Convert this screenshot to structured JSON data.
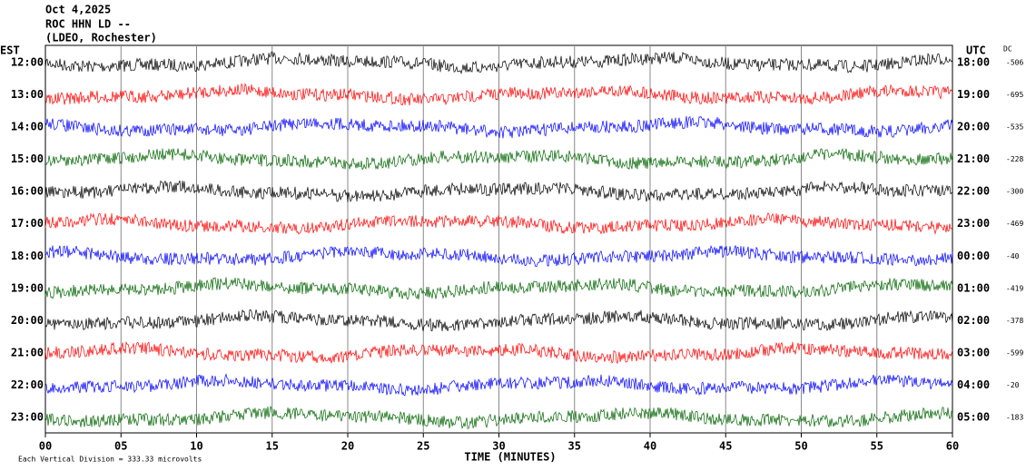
{
  "header": {
    "date": "Oct 4,2025",
    "station": "ROC HHN LD --",
    "network": "(LDEO, Rochester)"
  },
  "left_axis": {
    "label": "EST",
    "ticks": [
      "12:00",
      "13:00",
      "14:00",
      "15:00",
      "16:00",
      "17:00",
      "18:00",
      "19:00",
      "20:00",
      "21:00",
      "22:00",
      "23:00"
    ]
  },
  "right_axis": {
    "label": "UTC",
    "ticks": [
      "18:00",
      "19:00",
      "20:00",
      "21:00",
      "22:00",
      "23:00",
      "00:00",
      "01:00",
      "02:00",
      "03:00",
      "04:00",
      "05:00"
    ]
  },
  "dc": {
    "label": "DC",
    "values": [
      -506,
      -695,
      -535,
      -228,
      -300,
      -469,
      -40,
      -419,
      -378,
      -599,
      -20,
      -183
    ]
  },
  "x_axis": {
    "title": "TIME (MINUTES)",
    "ticks": [
      "00",
      "05",
      "10",
      "15",
      "20",
      "25",
      "30",
      "35",
      "40",
      "45",
      "50",
      "55",
      "60"
    ]
  },
  "footer": "Each Vertical Division =  333.33 microvolts",
  "trace_colors": [
    "#000000",
    "#ff0000",
    "#0000ff",
    "#006400"
  ]
}
